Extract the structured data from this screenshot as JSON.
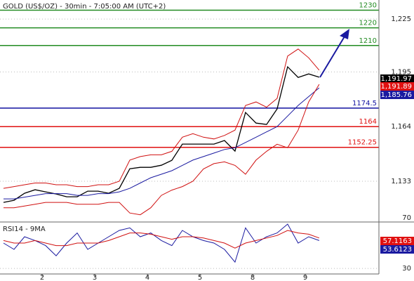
{
  "chart_data": [
    {
      "type": "line",
      "title": "GOLD (US$/OZ) - 30min - 7:05:00 AM (UTC+2)",
      "x": [
        0,
        1,
        2,
        3,
        4,
        5,
        6,
        7,
        8,
        9,
        10,
        11,
        12,
        13,
        14,
        15,
        16,
        17,
        18,
        19,
        20,
        21,
        22,
        23,
        24,
        25,
        26,
        27,
        28,
        29,
        30
      ],
      "xlim": [
        -0.33,
        35.67
      ],
      "ylim": [
        1110.3,
        1235.8
      ],
      "yticks": [
        {
          "value": 1225,
          "label": "1,225"
        },
        {
          "value": 1195,
          "label": "1,195"
        },
        {
          "value": 1164,
          "label": "1,164"
        },
        {
          "value": 1133,
          "label": "1,133"
        }
      ],
      "series": [
        {
          "color": "#000000",
          "values": [
            1121,
            1122.2,
            1126.2,
            1128.2,
            1127,
            1125.8,
            1124.2,
            1124.2,
            1127.4,
            1127.4,
            1126.2,
            1129,
            1140.1,
            1140.9,
            1140.9,
            1142.1,
            1144.9,
            1154.1,
            1154.1,
            1154.1,
            1154.1,
            1156.1,
            1150.1,
            1172,
            1166,
            1165.2,
            1174,
            1197.9,
            1191.9,
            1193.9,
            1192
          ]
        },
        {
          "color": "#1a1aa0",
          "values": [
            1123,
            1123,
            1124,
            1125,
            1126,
            1126,
            1126,
            1125,
            1125,
            1126,
            1126,
            1127,
            1129,
            1132,
            1135,
            1137,
            1139,
            1142,
            1145,
            1147,
            1149,
            1151,
            1152,
            1155,
            1158,
            1161,
            1164,
            1170,
            1176,
            1181,
            1186
          ]
        },
        {
          "color": "#d01010",
          "values": [
            1129,
            1130,
            1131,
            1132,
            1132,
            1131,
            1131,
            1130,
            1130,
            1131,
            1131,
            1133,
            1145,
            1147,
            1148,
            1148,
            1150,
            1158,
            1160,
            1158,
            1157,
            1159,
            1162,
            1176,
            1178,
            1175,
            1180,
            1204,
            1208,
            1203,
            1196
          ]
        },
        {
          "color": "#d01010",
          "values": [
            1118,
            1118,
            1119,
            1120,
            1121,
            1121,
            1121,
            1120,
            1120,
            1120,
            1121,
            1121,
            1115,
            1114,
            1118,
            1125,
            1128,
            1130,
            1133,
            1140,
            1143,
            1144,
            1142,
            1137,
            1145,
            1150,
            1154,
            1152,
            1162,
            1178,
            1188
          ]
        }
      ],
      "levels": [
        {
          "value": 1230,
          "color": "#228b22"
        },
        {
          "value": 1220,
          "color": "#228b22"
        },
        {
          "value": 1210,
          "color": "#228b22"
        },
        {
          "value": 1174.5,
          "color": "#1010a0"
        },
        {
          "value": 1164,
          "color": "#e01010"
        },
        {
          "value": 1152.25,
          "color": "#e01010"
        }
      ],
      "price_tags": [
        {
          "value": 1191.97,
          "label": "1,191.97",
          "color": "#000000"
        },
        {
          "value": 1191.89,
          "label": "1,191.89",
          "color": "#e01010"
        },
        {
          "value": 1185.76,
          "label": "1,185.76",
          "color": "#1a1aa0"
        }
      ]
    },
    {
      "type": "line",
      "title": "RSI14 - 9MA",
      "ylim": [
        25.6,
        70
      ],
      "yticks": [
        30,
        70
      ],
      "xticks": [
        {
          "value": 3.67,
          "label": "2"
        },
        {
          "value": 8.67,
          "label": "3"
        },
        {
          "value": 13.67,
          "label": "4"
        },
        {
          "value": 18.67,
          "label": "5"
        },
        {
          "value": 23.67,
          "label": "8"
        },
        {
          "value": 28.67,
          "label": "9"
        }
      ],
      "series": [
        {
          "color": "#1a1aa0",
          "values": [
            50,
            45,
            55,
            52,
            48,
            40,
            50,
            58,
            45,
            50,
            55,
            60,
            62,
            55,
            58,
            52,
            48,
            60,
            55,
            52,
            50,
            45,
            35,
            62,
            50,
            55,
            58,
            65,
            50,
            55,
            52
          ]
        },
        {
          "color": "#d01010",
          "values": [
            52,
            50,
            50,
            52,
            50,
            48,
            48,
            50,
            50,
            50,
            52,
            55,
            58,
            58,
            57,
            55,
            53,
            55,
            55,
            54,
            52,
            50,
            46,
            50,
            52,
            54,
            56,
            60,
            58,
            57,
            54
          ]
        }
      ],
      "price_tags": [
        {
          "value": 57.1163,
          "color": "#e01010"
        },
        {
          "value": 53.6123,
          "color": "#1a1aa0"
        }
      ]
    }
  ]
}
